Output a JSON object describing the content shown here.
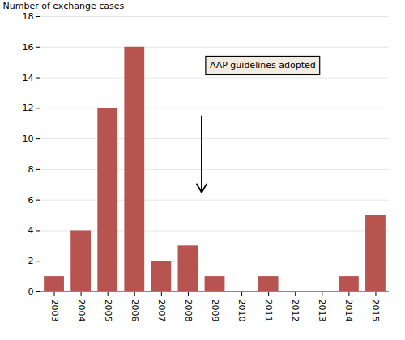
{
  "chart_data": {
    "type": "bar",
    "categories": [
      "2003",
      "2004",
      "2005",
      "2006",
      "2007",
      "2008",
      "2009",
      "2010",
      "2011",
      "2012",
      "2013",
      "2014",
      "2015"
    ],
    "values": [
      1,
      4,
      12,
      16,
      2,
      3,
      1,
      0,
      1,
      0,
      0,
      1,
      5
    ],
    "color": "#b85450",
    "ylabel": "Number of exchange cases",
    "ylim": [
      0,
      18
    ],
    "yticks": [
      0,
      2,
      4,
      6,
      8,
      10,
      12,
      14,
      16,
      18
    ],
    "grid": true,
    "annotations": [
      {
        "text": "AAP guidelines adopted",
        "x": 5.8,
        "y": 14.8,
        "arrow": {
          "x": 5.5,
          "y_start": 11.5,
          "y_end": 6.5
        }
      }
    ]
  }
}
